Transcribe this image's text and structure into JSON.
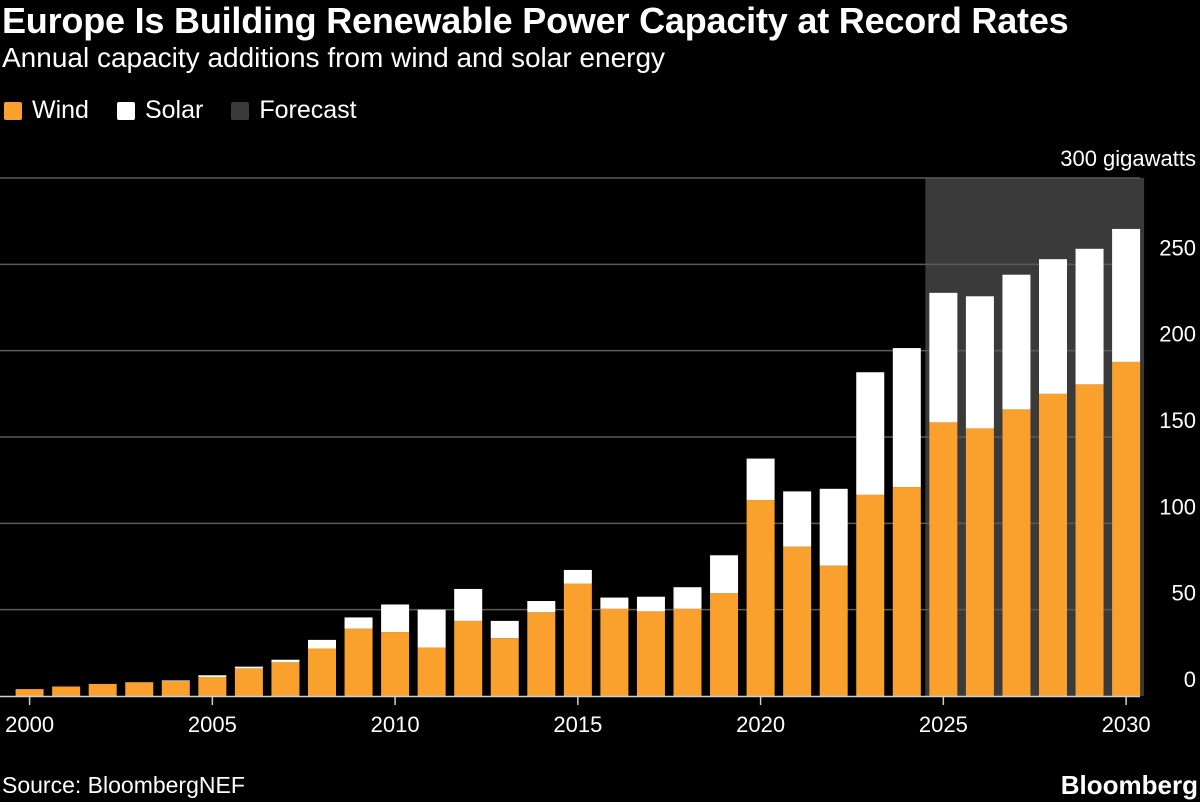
{
  "header": {
    "title": "Europe Is Building Renewable Power Capacity at Record Rates",
    "subtitle": "Annual capacity additions from wind and solar energy"
  },
  "legend": {
    "items": [
      {
        "label": "Wind",
        "color": "#f9a12c"
      },
      {
        "label": "Solar",
        "color": "#ffffff"
      },
      {
        "label": "Forecast",
        "color": "#3a3a3a"
      }
    ]
  },
  "footer": {
    "source": "Source: BloombergNEF",
    "brand": "Bloomberg"
  },
  "chart_data": {
    "type": "bar",
    "stacked": true,
    "unit_label": "300 gigawatts",
    "ylim": [
      0,
      300
    ],
    "y_ticks": [
      0,
      50,
      100,
      150,
      200,
      250
    ],
    "x_ticks": [
      2000,
      2005,
      2010,
      2015,
      2020,
      2025,
      2030
    ],
    "forecast_range": [
      2025,
      2030
    ],
    "grid": true,
    "colors": {
      "wind": "#f9a12c",
      "solar": "#ffffff",
      "forecast": "#3a3a3a",
      "grid": "#5a5a5a"
    },
    "categories": [
      2000,
      2001,
      2002,
      2003,
      2004,
      2005,
      2006,
      2007,
      2008,
      2009,
      2010,
      2011,
      2012,
      2013,
      2014,
      2015,
      2016,
      2017,
      2018,
      2019,
      2020,
      2021,
      2022,
      2023,
      2024,
      2025,
      2026,
      2027,
      2028,
      2029,
      2030
    ],
    "series": [
      {
        "name": "Wind",
        "values": [
          4,
          5.5,
          7,
          8,
          8.5,
          11,
          16,
          19.5,
          27.5,
          39,
          37,
          28,
          43.5,
          33.5,
          48.5,
          65,
          50.5,
          49,
          50.5,
          59.5,
          113.5,
          86.5,
          75.5,
          116.5,
          121,
          158.5,
          155,
          166,
          175,
          180.5,
          193.5
        ]
      },
      {
        "name": "Solar",
        "values": [
          0,
          0,
          0,
          0,
          0.5,
          1,
          1,
          1.5,
          5,
          6.5,
          16,
          22,
          18.5,
          10,
          6.5,
          8,
          6.5,
          8.5,
          12.5,
          22,
          24,
          32,
          44.5,
          71,
          80.5,
          75,
          76.5,
          78,
          78,
          78.5,
          77
        ]
      }
    ]
  }
}
